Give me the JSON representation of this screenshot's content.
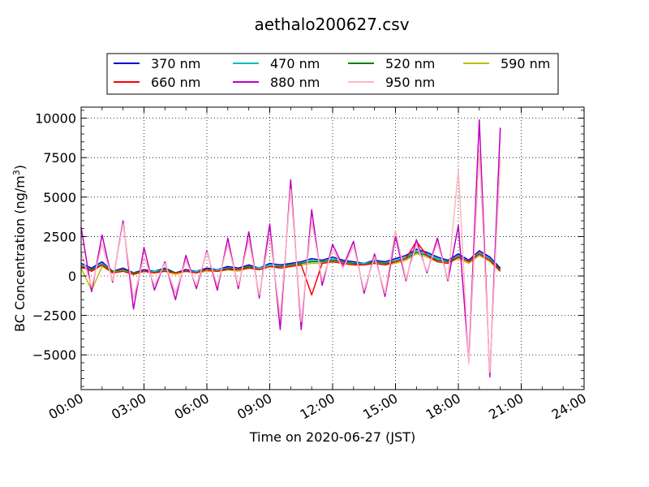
{
  "chart_data": {
    "type": "line",
    "title": "aethalo200627.csv",
    "xlabel": "Time on 2020-06-27 (JST)",
    "ylabel_main": "BC Concentration (ng/m",
    "ylabel_sup": "3",
    "ylabel_close": ")",
    "xlim": [
      "00:00",
      "24:00"
    ],
    "ylim": [
      -7200,
      10700
    ],
    "x_ticks": [
      "00:00",
      "03:00",
      "06:00",
      "09:00",
      "12:00",
      "15:00",
      "18:00",
      "21:00",
      "24:00"
    ],
    "y_ticks": [
      {
        "value": -5000,
        "label": "−5000"
      },
      {
        "value": -2500,
        "label": "−2500"
      },
      {
        "value": 0,
        "label": "0"
      },
      {
        "value": 2500,
        "label": "2500"
      },
      {
        "value": 5000,
        "label": "5000"
      },
      {
        "value": 7500,
        "label": "7500"
      },
      {
        "value": 10000,
        "label": "10000"
      }
    ],
    "grid": "dotted",
    "legend_position": "top, above plot, 4 columns",
    "x": [
      "00:00",
      "00:30",
      "01:00",
      "01:30",
      "02:00",
      "02:30",
      "03:00",
      "03:30",
      "04:00",
      "04:30",
      "05:00",
      "05:30",
      "06:00",
      "06:30",
      "07:00",
      "07:30",
      "08:00",
      "08:30",
      "09:00",
      "09:30",
      "10:00",
      "10:30",
      "11:00",
      "11:30",
      "12:00",
      "12:30",
      "13:00",
      "13:30",
      "14:00",
      "14:30",
      "15:00",
      "15:30",
      "16:00",
      "16:30",
      "17:00",
      "17:30",
      "18:00",
      "18:30",
      "19:00",
      "19:30",
      "20:00"
    ],
    "series": [
      {
        "name": "370 nm",
        "color": "#0000cc",
        "values": [
          800,
          500,
          900,
          300,
          500,
          200,
          400,
          300,
          500,
          200,
          400,
          300,
          500,
          400,
          600,
          500,
          700,
          500,
          800,
          700,
          800,
          900,
          1100,
          1000,
          1200,
          1000,
          900,
          800,
          1000,
          900,
          1100,
          1300,
          1700,
          1500,
          1200,
          1000,
          1400,
          1000,
          1600,
          1200,
          500
        ]
      },
      {
        "name": "470 nm",
        "color": "#00bfbf",
        "values": [
          700,
          400,
          800,
          300,
          400,
          200,
          300,
          300,
          400,
          200,
          300,
          300,
          400,
          400,
          500,
          400,
          600,
          500,
          700,
          600,
          700,
          800,
          1000,
          900,
          1100,
          900,
          800,
          800,
          900,
          800,
          1000,
          1200,
          1600,
          1400,
          1100,
          900,
          1300,
          900,
          1500,
          1100,
          400
        ]
      },
      {
        "name": "520 nm",
        "color": "#008000",
        "values": [
          600,
          400,
          700,
          300,
          400,
          200,
          300,
          200,
          400,
          200,
          300,
          200,
          400,
          300,
          500,
          400,
          600,
          400,
          600,
          600,
          700,
          800,
          900,
          900,
          1000,
          900,
          800,
          700,
          900,
          800,
          900,
          1100,
          1500,
          1300,
          1000,
          900,
          1200,
          900,
          1400,
          1000,
          400
        ]
      },
      {
        "name": "590 nm",
        "color": "#bfbf00",
        "values": [
          500,
          -900,
          600,
          200,
          300,
          100,
          300,
          200,
          300,
          100,
          300,
          200,
          300,
          300,
          400,
          300,
          500,
          400,
          600,
          500,
          600,
          700,
          800,
          800,
          900,
          800,
          700,
          700,
          800,
          700,
          800,
          1000,
          1400,
          1200,
          900,
          800,
          1100,
          800,
          1300,
          900,
          300
        ]
      },
      {
        "name": "660 nm",
        "color": "#ff0000",
        "values": [
          600,
          300,
          700,
          200,
          300,
          100,
          300,
          200,
          300,
          200,
          300,
          200,
          400,
          300,
          400,
          400,
          500,
          400,
          600,
          500,
          600,
          700,
          -1200,
          800,
          900,
          800,
          700,
          700,
          800,
          700,
          900,
          1100,
          2200,
          1300,
          900,
          800,
          1200,
          900,
          1400,
          1000,
          300
        ]
      },
      {
        "name": "880 nm",
        "color": "#bf00bf",
        "values": [
          3100,
          -1000,
          2600,
          -400,
          3500,
          -2100,
          1800,
          -900,
          900,
          -1500,
          1300,
          -800,
          1600,
          -900,
          2400,
          -800,
          2800,
          -1400,
          3300,
          -3400,
          6100,
          -3400,
          4200,
          -600,
          2000,
          600,
          2200,
          -1100,
          1400,
          -1300,
          2500,
          -300,
          2300,
          200,
          2400,
          -300,
          3200,
          -5400,
          9900,
          -6400,
          9400
        ]
      },
      {
        "name": "950 nm",
        "color": "#ffb6c1",
        "values": [
          1500,
          -700,
          2000,
          -300,
          3300,
          -1400,
          1200,
          -600,
          800,
          -1100,
          1000,
          -600,
          1500,
          -600,
          2000,
          -600,
          2300,
          -1200,
          2600,
          -2600,
          5500,
          -2900,
          3500,
          -300,
          1700,
          500,
          1900,
          -900,
          1200,
          -1100,
          2900,
          -200,
          2000,
          300,
          2100,
          -200,
          6700,
          -5600,
          8000,
          -6100,
          7400
        ]
      }
    ]
  }
}
